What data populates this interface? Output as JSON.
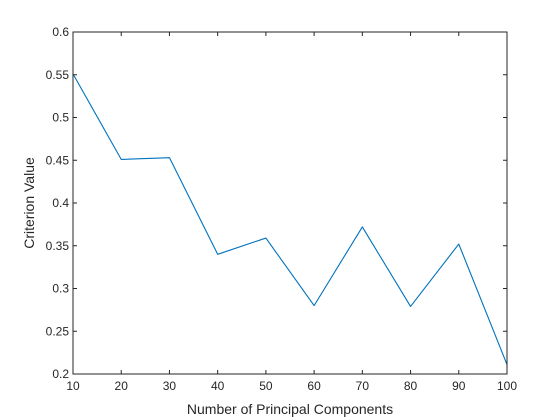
{
  "chart_data": {
    "type": "line",
    "title": "",
    "xlabel": "Number of Principal Components",
    "ylabel": "Criterion Value",
    "xlim": [
      10,
      100
    ],
    "ylim": [
      0.2,
      0.6
    ],
    "x_ticks": [
      "10",
      "20",
      "30",
      "40",
      "50",
      "60",
      "70",
      "80",
      "90",
      "100"
    ],
    "y_ticks": [
      "0.2",
      "0.25",
      "0.3",
      "0.35",
      "0.4",
      "0.45",
      "0.5",
      "0.55",
      "0.6"
    ],
    "grid": false,
    "box": true,
    "line_color": "#0072BD",
    "series": [
      {
        "x": [
          10,
          20,
          30,
          40,
          50,
          60,
          70,
          80,
          90,
          100
        ],
        "values": [
          0.551,
          0.451,
          0.453,
          0.34,
          0.359,
          0.28,
          0.372,
          0.279,
          0.352,
          0.211
        ]
      }
    ]
  }
}
